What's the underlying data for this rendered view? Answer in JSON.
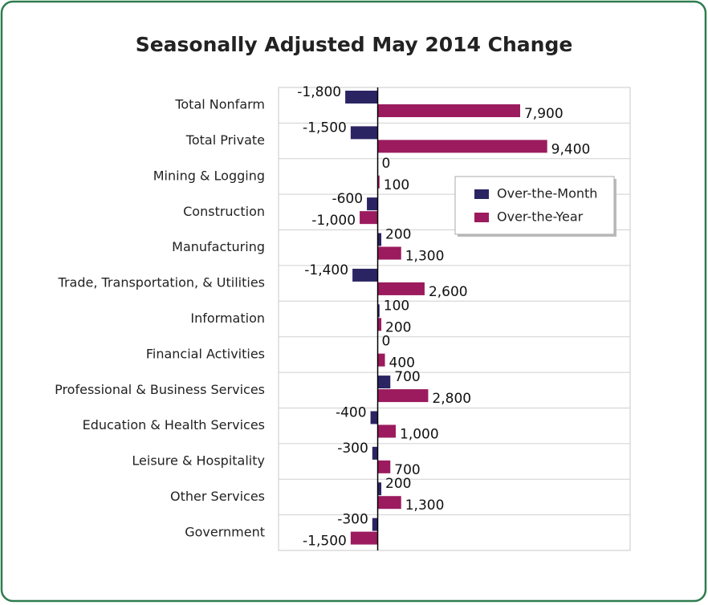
{
  "chart_data": {
    "type": "barh",
    "title": "Seasonally Adjusted May 2014 Change",
    "categories": [
      "Total Nonfarm",
      "Total Private",
      "Mining & Logging",
      "Construction",
      "Manufacturing",
      "Trade, Transportation, & Utilities",
      "Information",
      "Financial Activities",
      "Professional & Business Services",
      "Education & Health Services",
      "Leisure & Hospitality",
      "Other Services",
      "Government"
    ],
    "series": [
      {
        "name": "Over-the-Month",
        "color": "#2b2463",
        "values": [
          -1800,
          -1500,
          0,
          -600,
          200,
          -1400,
          100,
          0,
          700,
          -400,
          -300,
          200,
          -300
        ],
        "value_labels": [
          "-1,800",
          "-1,500",
          "0",
          "-600",
          "200",
          "-1,400",
          "100",
          "0",
          "700",
          "-400",
          "-300",
          "200",
          "-300"
        ]
      },
      {
        "name": "Over-the-Year",
        "color": "#9b1b5e",
        "values": [
          7900,
          9400,
          100,
          -1000,
          1300,
          2600,
          200,
          400,
          2800,
          1000,
          700,
          1300,
          -1500
        ],
        "value_labels": [
          "7,900",
          "9,400",
          "100",
          "-1,000",
          "1,300",
          "2,600",
          "200",
          "400",
          "2,800",
          "1,000",
          "700",
          "1,300",
          "-1,500"
        ]
      }
    ],
    "xlim": [
      -5500,
      14000
    ],
    "legend": "upper right",
    "grid": true
  }
}
